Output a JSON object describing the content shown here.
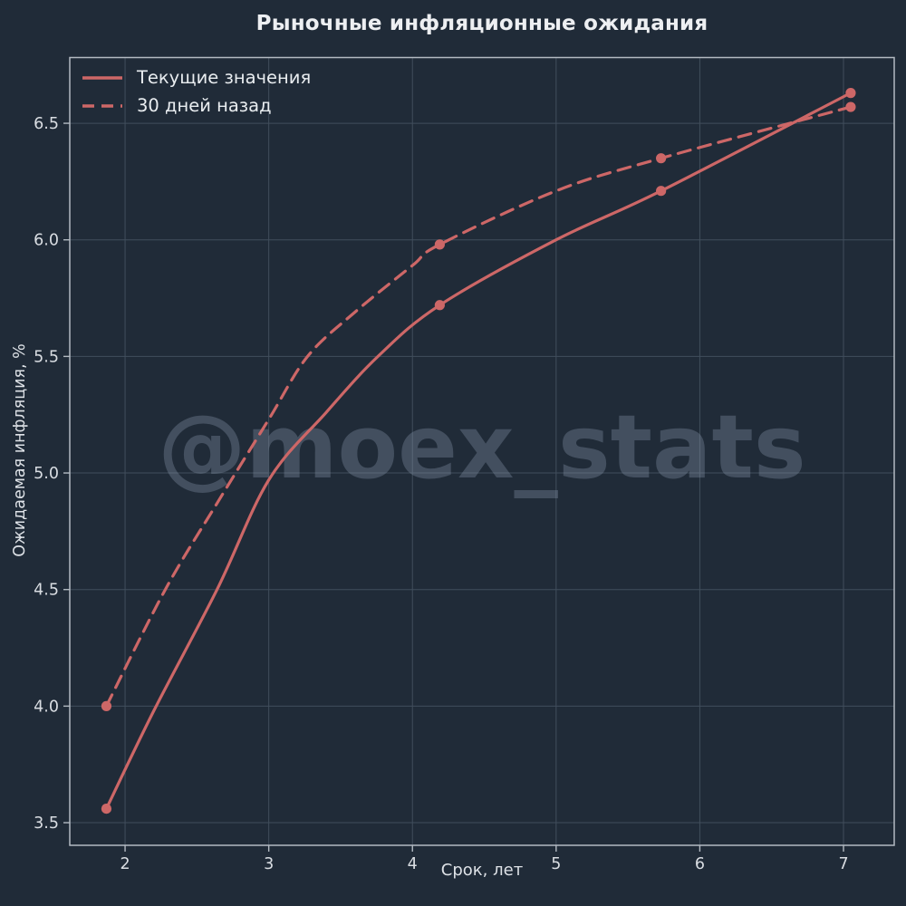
{
  "title": "Рыночные инфляционные ожидания",
  "watermark": "@moex_stats",
  "colors": {
    "background": "#202b38",
    "line": "#cd6767",
    "grid": "#414e5c",
    "frame": "#b3bac2",
    "tick_text": "#d9dde2",
    "title_text": "#edeff2",
    "watermark_text": "rgba(140,156,176,0.33)"
  },
  "chart_data": {
    "type": "line",
    "title": "Рыночные инфляционные ожидания",
    "xlabel": "Срок, лет",
    "ylabel": "Ожидаемая инфляция, %",
    "xlim": [
      1.615,
      7.353
    ],
    "ylim": [
      3.403,
      6.782
    ],
    "grid": true,
    "legend_position": "upper left",
    "xticks": {
      "values": [
        2,
        3,
        4,
        5,
        6,
        7
      ],
      "labels": [
        "2",
        "3",
        "4",
        "5",
        "6",
        "7"
      ]
    },
    "yticks": {
      "values": [
        3.5,
        4.0,
        4.5,
        5.0,
        5.5,
        6.0,
        6.5
      ],
      "labels": [
        "3.5",
        "4.0",
        "4.5",
        "5.0",
        "5.5",
        "6.0",
        "6.5"
      ]
    },
    "series": [
      {
        "name": "Текущие значения",
        "style": "solid",
        "color": "#cd6767",
        "points": [
          [
            1.87,
            3.56
          ],
          [
            4.19,
            5.72
          ],
          [
            5.73,
            6.21
          ],
          [
            7.05,
            6.63
          ]
        ],
        "curve": [
          [
            1.87,
            3.56
          ],
          [
            2.2,
            3.98
          ],
          [
            2.64,
            4.5
          ],
          [
            3.0,
            4.97
          ],
          [
            3.4,
            5.26
          ],
          [
            3.76,
            5.5
          ],
          [
            4.19,
            5.72
          ],
          [
            5.0,
            6.0
          ],
          [
            5.73,
            6.21
          ],
          [
            7.05,
            6.63
          ]
        ]
      },
      {
        "name": "30 дней назад",
        "style": "dashed",
        "color": "#cd6767",
        "points": [
          [
            1.87,
            4.0
          ],
          [
            4.19,
            5.98
          ],
          [
            5.73,
            6.35
          ],
          [
            7.05,
            6.57
          ]
        ],
        "curve": [
          [
            1.87,
            4.0
          ],
          [
            2.28,
            4.5
          ],
          [
            2.65,
            4.88
          ],
          [
            3.0,
            5.23
          ],
          [
            3.27,
            5.5
          ],
          [
            3.6,
            5.69
          ],
          [
            4.0,
            5.89
          ],
          [
            4.19,
            5.98
          ],
          [
            5.0,
            6.21
          ],
          [
            5.73,
            6.35
          ],
          [
            7.05,
            6.57
          ]
        ]
      }
    ]
  }
}
